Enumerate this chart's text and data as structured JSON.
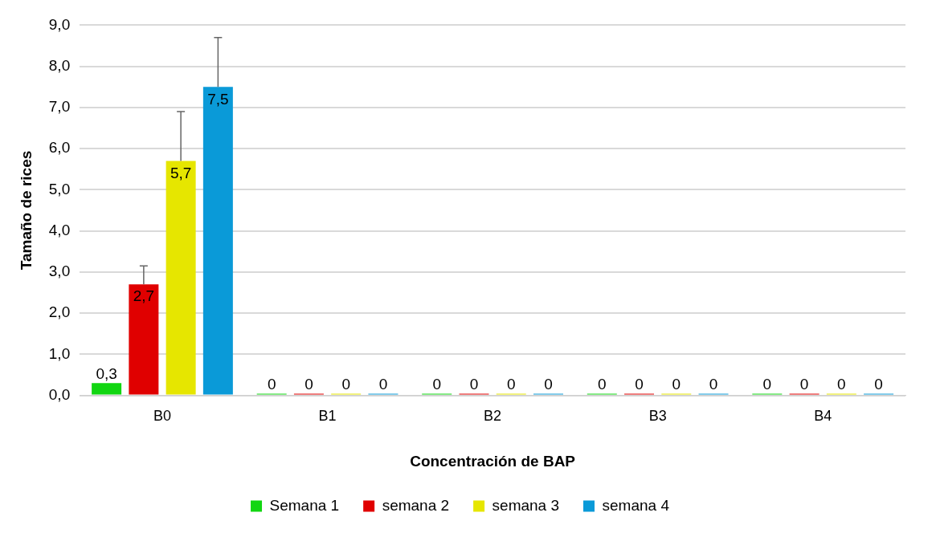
{
  "chart_data": {
    "type": "bar",
    "xlabel": "Concentración de BAP",
    "ylabel": "Tamaño de rices",
    "categories": [
      "B0",
      "B1",
      "B2",
      "B3",
      "B4"
    ],
    "series": [
      {
        "name": "Semana 1",
        "color": "#11d611",
        "values": [
          0.3,
          0,
          0,
          0,
          0
        ],
        "value_labels": [
          "0,3",
          "0",
          "0",
          "0",
          "0"
        ]
      },
      {
        "name": "semana 2",
        "color": "#e00000",
        "values": [
          2.7,
          0,
          0,
          0,
          0
        ],
        "errors": [
          0.45,
          null,
          null,
          null,
          null
        ],
        "value_labels": [
          "2,7",
          "0",
          "0",
          "0",
          "0"
        ]
      },
      {
        "name": "semana 3",
        "color": "#e6e600",
        "values": [
          5.7,
          0,
          0,
          0,
          0
        ],
        "errors": [
          1.2,
          null,
          null,
          null,
          null
        ],
        "value_labels": [
          "5,7",
          "0",
          "0",
          "0",
          "0"
        ]
      },
      {
        "name": "semana 4",
        "color": "#0a9ad8",
        "values": [
          7.5,
          0,
          0,
          0,
          0
        ],
        "errors": [
          1.2,
          null,
          null,
          null,
          null
        ],
        "value_labels": [
          "7,5",
          "0",
          "0",
          "0",
          "0"
        ]
      }
    ],
    "ylim": [
      0,
      9
    ],
    "yticks": [
      {
        "value": 0,
        "label": "0,0"
      },
      {
        "value": 1,
        "label": "1,0"
      },
      {
        "value": 2,
        "label": "2,0"
      },
      {
        "value": 3,
        "label": "3,0"
      },
      {
        "value": 4,
        "label": "4,0"
      },
      {
        "value": 5,
        "label": "5,0"
      },
      {
        "value": 6,
        "label": "6,0"
      },
      {
        "value": 7,
        "label": "7,0"
      },
      {
        "value": 8,
        "label": "8,0"
      },
      {
        "value": 9,
        "label": "9,0"
      }
    ],
    "grid": "y",
    "legend": "bottom"
  }
}
